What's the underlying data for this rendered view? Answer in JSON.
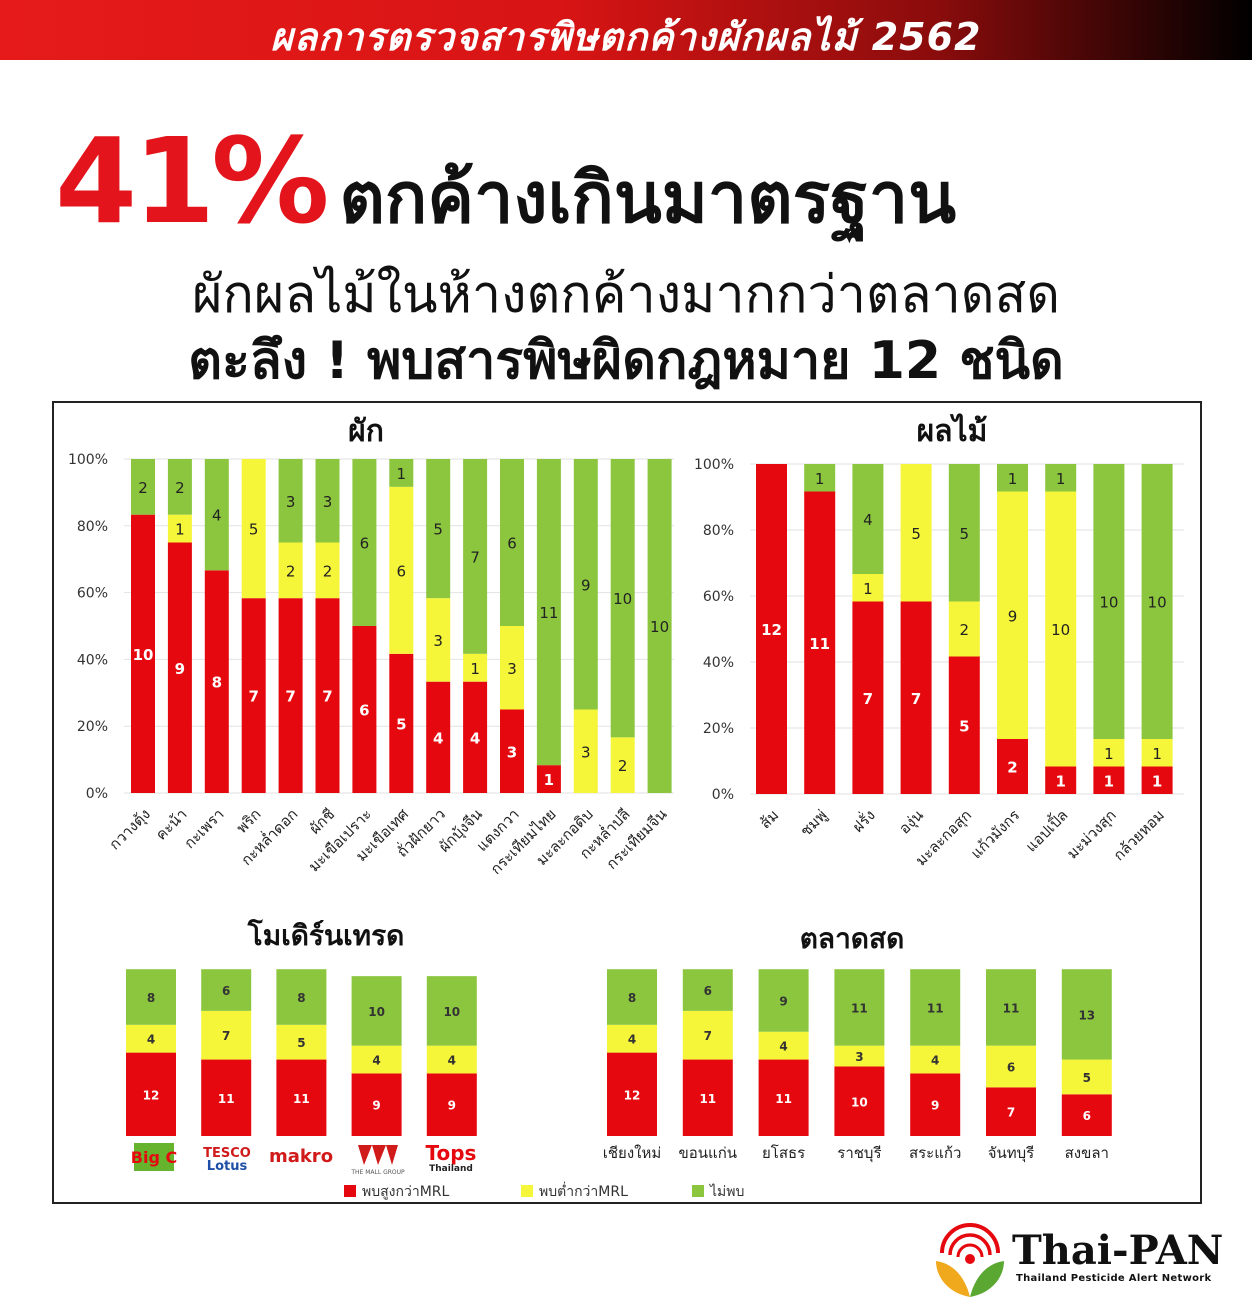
{
  "banner": {
    "title": "ผลการตรวจสารพิษตกค้างผักผลไม้ 2562"
  },
  "headline": {
    "percent": "41%",
    "text": "ตกค้างเกินมาตรฐาน",
    "sub1": "ผักผลไม้ในห้างตกค้างมากกว่าตลาดสด",
    "sub2": "ตะลึง ! พบสารพิษผิดกฎหมาย 12 ชนิด"
  },
  "colors": {
    "red": "#e5090f",
    "yellow": "#f5f53a",
    "green": "#8cc63f"
  },
  "legend": [
    {
      "label": "พบสูงกว่าMRL",
      "color": "#e5090f"
    },
    {
      "label": "พบต่ำกว่าMRL",
      "color": "#f5f53a"
    },
    {
      "label": "ไม่พบ",
      "color": "#8cc63f"
    }
  ],
  "chart_data": [
    {
      "type": "bar",
      "stacked": "percent",
      "title": "ผัก",
      "categories": [
        "กวางตุ้ง",
        "คะน้า",
        "กะเพรา",
        "พริก",
        "กะหล่ำดอก",
        "ผักชี",
        "มะเขือเปราะ",
        "มะเขือเทศ",
        "ถั่วฝักยาว",
        "ผักบุ้งจีน",
        "แตงกวา",
        "กระเทียมไทย",
        "มะละกอดิบ",
        "กะหล่ำปลี",
        "กระเทียมจีน"
      ],
      "series": [
        {
          "name": "พบสูงกว่าMRL",
          "values": [
            10,
            9,
            8,
            7,
            7,
            7,
            6,
            5,
            4,
            4,
            3,
            1,
            0,
            0,
            0
          ]
        },
        {
          "name": "พบต่ำกว่าMRL",
          "values": [
            0,
            1,
            0,
            5,
            2,
            2,
            0,
            6,
            3,
            1,
            3,
            0,
            3,
            2,
            0
          ]
        },
        {
          "name": "ไม่พบ",
          "values": [
            2,
            2,
            4,
            0,
            3,
            3,
            6,
            1,
            5,
            7,
            6,
            11,
            9,
            10,
            10
          ]
        }
      ],
      "yticks": [
        "0%",
        "20%",
        "40%",
        "60%",
        "80%",
        "100%"
      ],
      "ylim": [
        0,
        100
      ]
    },
    {
      "type": "bar",
      "stacked": "percent",
      "title": "ผลไม้",
      "categories": [
        "ส้ม",
        "ชมพู่",
        "ฝรั่ง",
        "องุ่น",
        "มะละกอสุก",
        "แก้วมังกร",
        "แอปเปิ้ล",
        "มะม่วงสุก",
        "กล้วยหอม"
      ],
      "series": [
        {
          "name": "พบสูงกว่าMRL",
          "values": [
            12,
            11,
            7,
            7,
            5,
            2,
            1,
            1,
            1
          ]
        },
        {
          "name": "พบต่ำกว่าMRL",
          "values": [
            0,
            0,
            1,
            5,
            2,
            9,
            10,
            1,
            1
          ]
        },
        {
          "name": "ไม่พบ",
          "values": [
            0,
            1,
            4,
            0,
            5,
            1,
            1,
            10,
            10
          ]
        }
      ],
      "yticks": [
        "0%",
        "20%",
        "40%",
        "60%",
        "80%",
        "100%"
      ],
      "ylim": [
        0,
        100
      ]
    },
    {
      "type": "bar",
      "stacked": "count",
      "title": "โมเดิร์นเทรด",
      "categories": [
        "Big C",
        "Tesco Lotus",
        "makro",
        "The Mall",
        "Tops"
      ],
      "series": [
        {
          "name": "พบสูงกว่าMRL",
          "values": [
            12,
            11,
            11,
            9,
            9
          ]
        },
        {
          "name": "พบต่ำกว่าMRL",
          "values": [
            4,
            7,
            5,
            4,
            4
          ]
        },
        {
          "name": "ไม่พบ",
          "values": [
            8,
            6,
            8,
            10,
            10
          ]
        }
      ]
    },
    {
      "type": "bar",
      "stacked": "count",
      "title": "ตลาดสด",
      "categories": [
        "เชียงใหม่",
        "ขอนแก่น",
        "ยโสธร",
        "ราชบุรี",
        "สระแก้ว",
        "จันทบุรี",
        "สงขลา"
      ],
      "series": [
        {
          "name": "พบสูงกว่าMRL",
          "values": [
            12,
            11,
            11,
            10,
            9,
            7,
            6
          ]
        },
        {
          "name": "พบต่ำกว่าMRL",
          "values": [
            4,
            7,
            4,
            3,
            4,
            6,
            5
          ]
        },
        {
          "name": "ไม่พบ",
          "values": [
            8,
            6,
            9,
            11,
            11,
            11,
            13
          ]
        }
      ]
    }
  ],
  "store_logos": {
    "bigc": "Big C",
    "tesco": "TESCO",
    "lotus": "Lotus",
    "makro": "makro",
    "themall": "THE MALL GROUP",
    "tops": "Tops",
    "tops_sub": "Thailand"
  },
  "brand": {
    "name": "Thai-PAN",
    "tagline": "Thailand Pesticide Alert Network"
  }
}
